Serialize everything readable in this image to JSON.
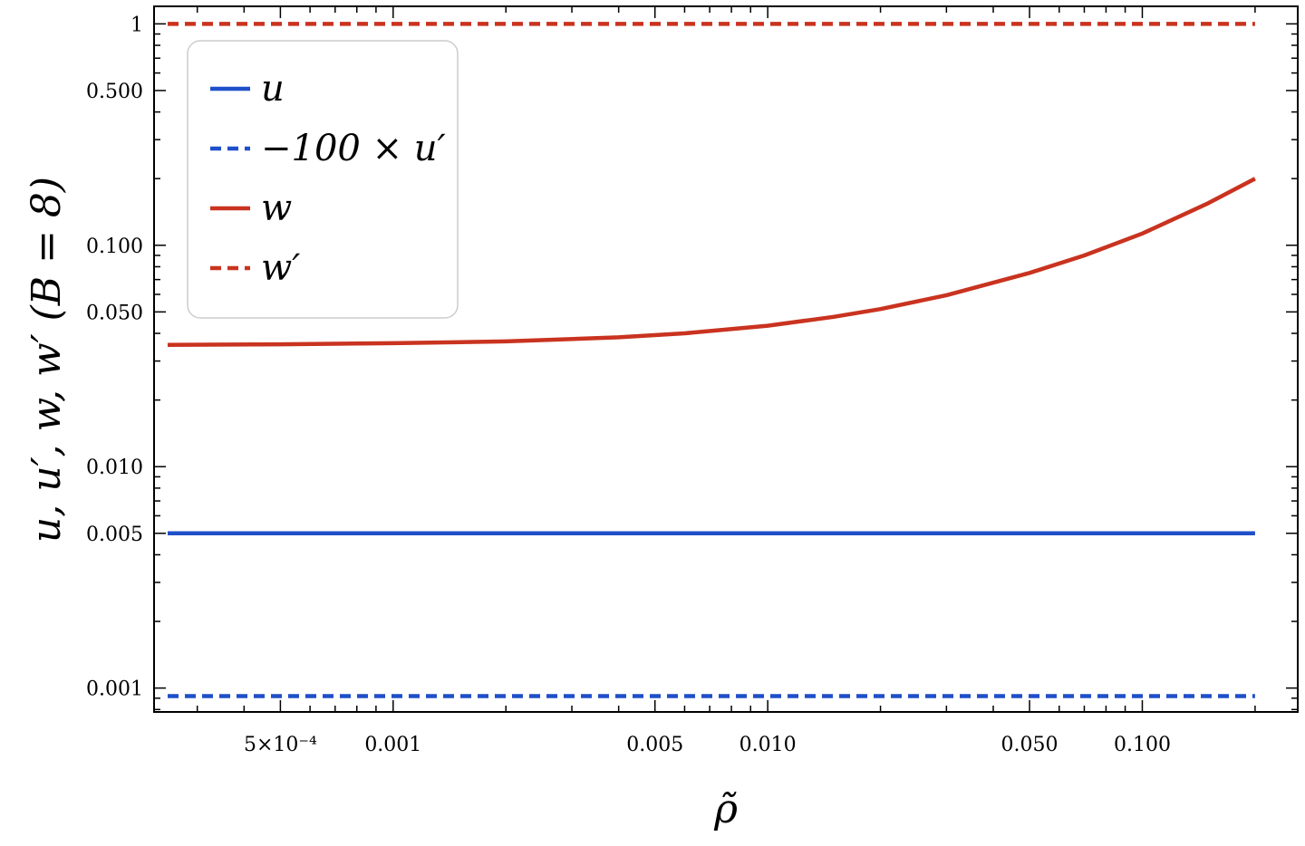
{
  "chart_data": {
    "type": "line",
    "xscale": "log",
    "yscale": "log",
    "xlabel": "ρ̃",
    "ylabel": "u, u′, w, w′ (B = 8)",
    "xlim": [
      0.00023,
      0.26
    ],
    "ylim": [
      0.00078,
      1.2
    ],
    "xticks": [
      {
        "value": 0.0005,
        "label": "5×10⁻⁴"
      },
      {
        "value": 0.001,
        "label": "0.001"
      },
      {
        "value": 0.005,
        "label": "0.005"
      },
      {
        "value": 0.01,
        "label": "0.010"
      },
      {
        "value": 0.05,
        "label": "0.050"
      },
      {
        "value": 0.1,
        "label": "0.100"
      }
    ],
    "yticks": [
      {
        "value": 0.001,
        "label": "0.001"
      },
      {
        "value": 0.005,
        "label": "0.005"
      },
      {
        "value": 0.01,
        "label": "0.010"
      },
      {
        "value": 0.05,
        "label": "0.050"
      },
      {
        "value": 0.1,
        "label": "0.100"
      },
      {
        "value": 0.5,
        "label": "0.500"
      },
      {
        "value": 1,
        "label": "1"
      }
    ],
    "legend": "top-left",
    "series": [
      {
        "name": "u",
        "color": "#1f4fc9",
        "style": "solid",
        "x": [
          0.00025,
          0.2
        ],
        "y": [
          0.005,
          0.005
        ]
      },
      {
        "name": "−100 × u′",
        "color": "#1f4fc9",
        "style": "dashed",
        "x": [
          0.00025,
          0.2
        ],
        "y": [
          0.00092,
          0.00092
        ]
      },
      {
        "name": "w",
        "color": "#c9331f",
        "style": "solid",
        "x": [
          0.00025,
          0.0005,
          0.001,
          0.002,
          0.004,
          0.006,
          0.01,
          0.015,
          0.02,
          0.03,
          0.05,
          0.07,
          0.1,
          0.15,
          0.2
        ],
        "y": [
          0.0355,
          0.0357,
          0.0361,
          0.0368,
          0.0384,
          0.04,
          0.0433,
          0.0475,
          0.0515,
          0.0595,
          0.075,
          0.09,
          0.113,
          0.155,
          0.2
        ]
      },
      {
        "name": "w′",
        "color": "#c9331f",
        "style": "dashed",
        "x": [
          0.00025,
          0.2
        ],
        "y": [
          1,
          1
        ]
      }
    ]
  }
}
